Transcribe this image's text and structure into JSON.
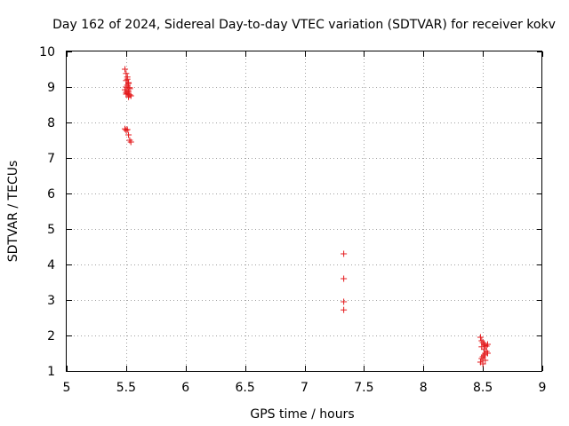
{
  "chart_data": {
    "type": "scatter",
    "title": "Day 162 of 2024, Sidereal Day-to-day VTEC variation (SDTVAR) for receiver kokv",
    "xlabel": "GPS time / hours",
    "ylabel": "SDTVAR / TECUs",
    "xlim": [
      5,
      9
    ],
    "ylim": [
      1,
      10
    ],
    "xticks": [
      "5",
      "5.5",
      "6",
      "6.5",
      "7",
      "7.5",
      "8",
      "8.5",
      "9"
    ],
    "yticks": [
      "1",
      "2",
      "3",
      "4",
      "5",
      "6",
      "7",
      "8",
      "9",
      "10"
    ],
    "grid": true,
    "marker": "+",
    "marker_color": "#e41a1c",
    "series": [
      {
        "name": "SDTVAR",
        "x": [
          5.49,
          5.5,
          5.51,
          5.5,
          5.52,
          5.51,
          5.5,
          5.53,
          5.49,
          5.52,
          5.5,
          5.51,
          5.53,
          5.54,
          5.52,
          5.5,
          5.51,
          5.52,
          5.53,
          5.49,
          5.5,
          5.51,
          5.52,
          5.53,
          5.54,
          7.33,
          7.33,
          7.33,
          7.33,
          8.48,
          8.49,
          8.5,
          8.51,
          8.52,
          8.53,
          8.54,
          8.53,
          8.52,
          8.51,
          8.5,
          8.49,
          8.48,
          8.5,
          8.52,
          8.54,
          8.51,
          8.49
        ],
        "y": [
          9.5,
          9.38,
          9.28,
          9.18,
          9.12,
          9.05,
          9.0,
          8.98,
          8.92,
          8.88,
          8.85,
          8.82,
          8.78,
          8.75,
          8.72,
          8.8,
          9.22,
          9.1,
          8.95,
          7.82,
          7.78,
          7.8,
          7.65,
          7.5,
          7.45,
          4.3,
          3.6,
          2.95,
          2.72,
          1.95,
          1.85,
          1.8,
          1.75,
          1.72,
          1.7,
          1.75,
          1.55,
          1.5,
          1.45,
          1.4,
          1.35,
          1.25,
          1.2,
          1.3,
          1.5,
          1.62,
          1.68
        ]
      }
    ]
  }
}
